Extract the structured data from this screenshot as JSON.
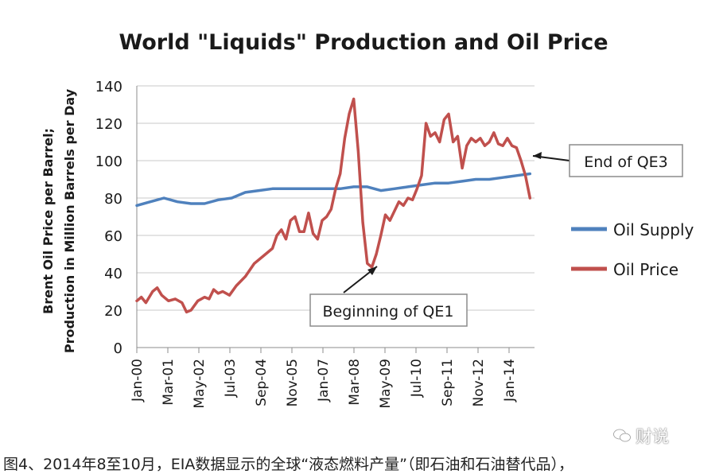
{
  "chart_data": {
    "type": "line",
    "title": "World \"Liquids\" Production and Oil Price",
    "ylabel_line1": "Brent Oil Price per Barrel;",
    "ylabel_line2": "Production in Million Barrels per Day",
    "ylim": [
      0,
      140
    ],
    "yticks": [
      0,
      20,
      40,
      60,
      80,
      100,
      120,
      140
    ],
    "xlim": [
      0,
      176
    ],
    "xtick_labels": [
      "Jan-00",
      "Mar-01",
      "May-02",
      "Jul-03",
      "Sep-04",
      "Nov-05",
      "Jan-07",
      "Mar-08",
      "May-09",
      "Jul-10",
      "Sep-11",
      "Nov-12",
      "Jan-14"
    ],
    "grid": true,
    "legend_position": "right",
    "colors": {
      "supply": "#4f81bd",
      "price": "#c0504d"
    },
    "series": [
      {
        "name": "Oil Supply",
        "points": [
          [
            0,
            76
          ],
          [
            6,
            78
          ],
          [
            12,
            80
          ],
          [
            18,
            78
          ],
          [
            24,
            77
          ],
          [
            30,
            77
          ],
          [
            36,
            79
          ],
          [
            42,
            80
          ],
          [
            48,
            83
          ],
          [
            54,
            84
          ],
          [
            60,
            85
          ],
          [
            66,
            85
          ],
          [
            72,
            85
          ],
          [
            78,
            85
          ],
          [
            84,
            85
          ],
          [
            90,
            85
          ],
          [
            96,
            86
          ],
          [
            102,
            86
          ],
          [
            108,
            84
          ],
          [
            114,
            85
          ],
          [
            120,
            86
          ],
          [
            126,
            87
          ],
          [
            132,
            88
          ],
          [
            138,
            88
          ],
          [
            144,
            89
          ],
          [
            150,
            90
          ],
          [
            156,
            90
          ],
          [
            162,
            91
          ],
          [
            168,
            92
          ],
          [
            174,
            93
          ]
        ]
      },
      {
        "name": "Oil Price",
        "points": [
          [
            0,
            25
          ],
          [
            2,
            27
          ],
          [
            4,
            24
          ],
          [
            7,
            30
          ],
          [
            9,
            32
          ],
          [
            11,
            28
          ],
          [
            14,
            25
          ],
          [
            17,
            26
          ],
          [
            20,
            24
          ],
          [
            22,
            19
          ],
          [
            24,
            20
          ],
          [
            27,
            25
          ],
          [
            30,
            27
          ],
          [
            32,
            26
          ],
          [
            34,
            31
          ],
          [
            36,
            29
          ],
          [
            38,
            30
          ],
          [
            41,
            28
          ],
          [
            44,
            33
          ],
          [
            48,
            38
          ],
          [
            52,
            45
          ],
          [
            56,
            49
          ],
          [
            60,
            53
          ],
          [
            62,
            60
          ],
          [
            64,
            63
          ],
          [
            66,
            58
          ],
          [
            68,
            68
          ],
          [
            70,
            70
          ],
          [
            72,
            62
          ],
          [
            74,
            62
          ],
          [
            76,
            72
          ],
          [
            78,
            61
          ],
          [
            80,
            58
          ],
          [
            82,
            68
          ],
          [
            84,
            70
          ],
          [
            86,
            74
          ],
          [
            88,
            85
          ],
          [
            90,
            93
          ],
          [
            92,
            112
          ],
          [
            94,
            125
          ],
          [
            96,
            133
          ],
          [
            98,
            105
          ],
          [
            100,
            67
          ],
          [
            102,
            45
          ],
          [
            104,
            43
          ],
          [
            106,
            50
          ],
          [
            108,
            60
          ],
          [
            110,
            71
          ],
          [
            112,
            68
          ],
          [
            114,
            73
          ],
          [
            116,
            78
          ],
          [
            118,
            76
          ],
          [
            120,
            80
          ],
          [
            122,
            79
          ],
          [
            124,
            85
          ],
          [
            126,
            92
          ],
          [
            128,
            120
          ],
          [
            130,
            113
          ],
          [
            132,
            115
          ],
          [
            134,
            110
          ],
          [
            136,
            122
          ],
          [
            138,
            125
          ],
          [
            140,
            110
          ],
          [
            142,
            113
          ],
          [
            144,
            96
          ],
          [
            146,
            108
          ],
          [
            148,
            112
          ],
          [
            150,
            110
          ],
          [
            152,
            112
          ],
          [
            154,
            108
          ],
          [
            156,
            110
          ],
          [
            158,
            115
          ],
          [
            160,
            109
          ],
          [
            162,
            108
          ],
          [
            164,
            112
          ],
          [
            166,
            108
          ],
          [
            168,
            107
          ],
          [
            170,
            100
          ],
          [
            172,
            92
          ],
          [
            174,
            80
          ]
        ]
      }
    ],
    "annotations": [
      {
        "text": "Beginning of QE1",
        "x": 103,
        "y": 44
      },
      {
        "text": "End of QE3",
        "x": 174,
        "y": 102
      }
    ]
  },
  "footer": {
    "caption": "图4、2014年8至10月，EIA数据显示的全球“液态燃料产量”（即石油和石油替代品），",
    "watermark": "财说"
  }
}
